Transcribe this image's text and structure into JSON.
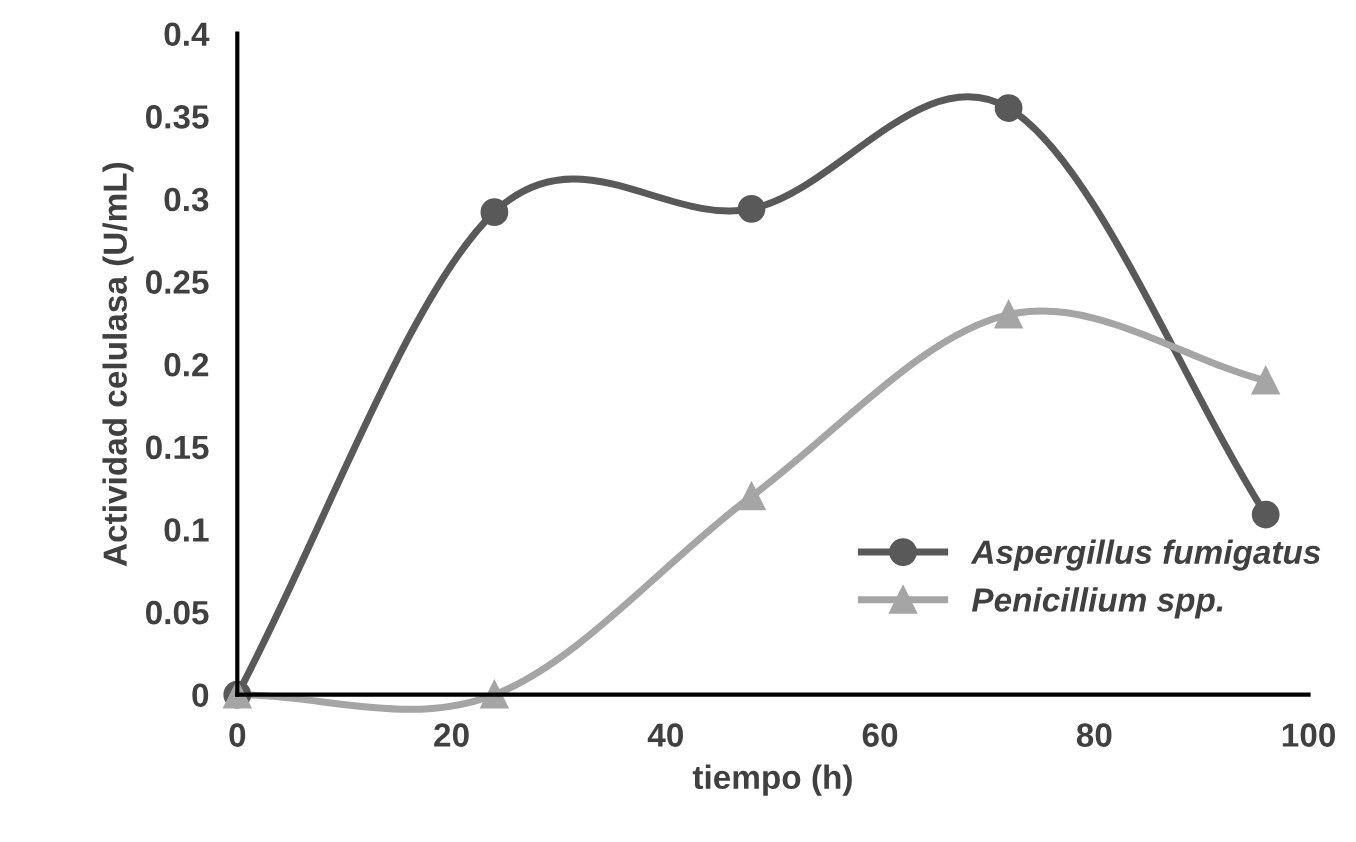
{
  "chart_data": {
    "type": "line",
    "xlabel": "tiempo (h)",
    "ylabel": "Actividad celulasa (U/mL)",
    "x": [
      0,
      24,
      48,
      72,
      96
    ],
    "series": [
      {
        "name": "Aspergillus fumigatus",
        "color": "#595959",
        "marker": "circle",
        "values": [
          0,
          0.292,
          0.294,
          0.355,
          0.109
        ]
      },
      {
        "name": "Penicillium spp.",
        "color": "#a5a5a5",
        "marker": "triangle",
        "values": [
          0,
          0,
          0.12,
          0.23,
          0.19
        ]
      }
    ],
    "xlim": [
      0,
      100
    ],
    "xticks": [
      0,
      20,
      40,
      60,
      80,
      100
    ],
    "ylim": [
      0,
      0.4
    ],
    "yticks": [
      0,
      0.05,
      0.1,
      0.15,
      0.2,
      0.25,
      0.3,
      0.35,
      0.4
    ],
    "grid": false,
    "legend": "bottom right",
    "line_style": "solid"
  }
}
